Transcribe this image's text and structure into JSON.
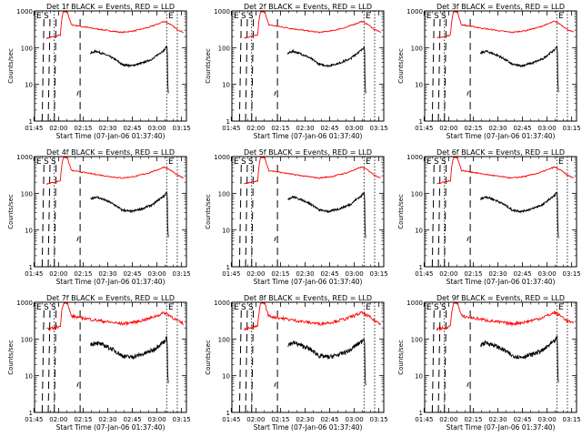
{
  "figure": {
    "xlabel": "Start Time (07-Jan-06 01:37:40)",
    "ylabel": "Counts/sec",
    "x_tick_labels": [
      "01:45",
      "02:00",
      "02:15",
      "02:30",
      "02:45",
      "03:00",
      "03:15"
    ],
    "y_tick_labels": [
      "1",
      "10",
      "100",
      "1000"
    ],
    "colors": {
      "events": "#000000",
      "lld": "#ff0000",
      "axis": "#000000"
    }
  },
  "chart_data": [
    {
      "type": "line",
      "title": "Det 1f BLACK = Events, RED = LLD",
      "marker_letters": [
        "E",
        "S",
        "E"
      ],
      "x_range_min": [
        7.7,
        100.3
      ],
      "y_range_log": [
        1,
        1000
      ],
      "grid": false
    },
    {
      "type": "line",
      "title": "Det 2f BLACK = Events, RED = LLD",
      "marker_letters": [
        "E",
        "S",
        "S",
        "E"
      ],
      "x_range_min": [
        7.7,
        100.3
      ],
      "y_range_log": [
        1,
        1000
      ],
      "grid": false
    },
    {
      "type": "line",
      "title": "Det 3f BLACK = Events, RED = LLD",
      "marker_letters": [
        "E",
        "S",
        "S",
        "E"
      ],
      "x_range_min": [
        7.7,
        100.3
      ],
      "y_range_log": [
        1,
        1000
      ],
      "grid": false
    },
    {
      "type": "line",
      "title": "Det 4f BLACK = Events, RED = LLD",
      "marker_letters": [
        "E",
        "S",
        "S",
        "E"
      ],
      "x_range_min": [
        7.7,
        100.3
      ],
      "y_range_log": [
        1,
        1000
      ],
      "grid": false
    },
    {
      "type": "line",
      "title": "Det 5f BLACK = Events, RED = LLD",
      "marker_letters": [
        "E",
        "S",
        "S",
        "E"
      ],
      "x_range_min": [
        7.7,
        100.3
      ],
      "y_range_log": [
        1,
        1000
      ],
      "grid": false
    },
    {
      "type": "line",
      "title": "Det 6f BLACK = Events, RED = LLD",
      "marker_letters": [
        "E",
        "S",
        "S",
        "E"
      ],
      "x_range_min": [
        7.7,
        100.3
      ],
      "y_range_log": [
        1,
        1000
      ],
      "grid": false
    },
    {
      "type": "line",
      "title": "Det 7f BLACK = Events, RED = LLD",
      "marker_letters": [
        "E",
        "S",
        "S",
        "E"
      ],
      "x_range_min": [
        7.7,
        100.3
      ],
      "y_range_log": [
        1,
        1000
      ],
      "grid": false
    },
    {
      "type": "line",
      "title": "Det 8f BLACK = Events, RED = LLD",
      "marker_letters": [
        "E",
        "S",
        "S",
        "E"
      ],
      "x_range_min": [
        7.7,
        100.3
      ],
      "y_range_log": [
        1,
        1000
      ],
      "grid": false
    },
    {
      "type": "line",
      "title": "Det 9f BLACK = Events, RED = LLD",
      "marker_letters": [
        "E",
        "S",
        "S",
        "E"
      ],
      "x_range_min": [
        7.7,
        100.3
      ],
      "y_range_log": [
        1,
        1000
      ],
      "grid": false
    }
  ]
}
